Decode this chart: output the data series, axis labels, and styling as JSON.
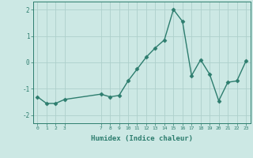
{
  "xlabel": "Humidex (Indice chaleur)",
  "x": [
    0,
    1,
    2,
    3,
    7,
    8,
    9,
    10,
    11,
    12,
    13,
    14,
    15,
    16,
    17,
    18,
    19,
    20,
    21,
    22,
    23
  ],
  "y": [
    -1.3,
    -1.55,
    -1.55,
    -1.4,
    -1.2,
    -1.3,
    -1.25,
    -0.7,
    -0.25,
    0.2,
    0.55,
    0.85,
    2.0,
    1.55,
    -0.5,
    0.1,
    -0.45,
    -1.45,
    -0.75,
    -0.7,
    0.05
  ],
  "line_color": "#2d7d6e",
  "bg_color": "#cce8e4",
  "grid_color": "#aed0cb",
  "tick_label_color": "#2d7d6e",
  "axis_color": "#2d7d6e",
  "ylim": [
    -2.3,
    2.3
  ],
  "yticks": [
    -2,
    -1,
    0,
    1,
    2
  ],
  "xlim": [
    -0.5,
    23.5
  ],
  "xticks": [
    0,
    1,
    2,
    3,
    7,
    8,
    9,
    10,
    11,
    12,
    13,
    14,
    15,
    16,
    17,
    18,
    19,
    20,
    21,
    22,
    23
  ],
  "marker": "D",
  "marker_size": 2.5,
  "line_width": 1.0
}
